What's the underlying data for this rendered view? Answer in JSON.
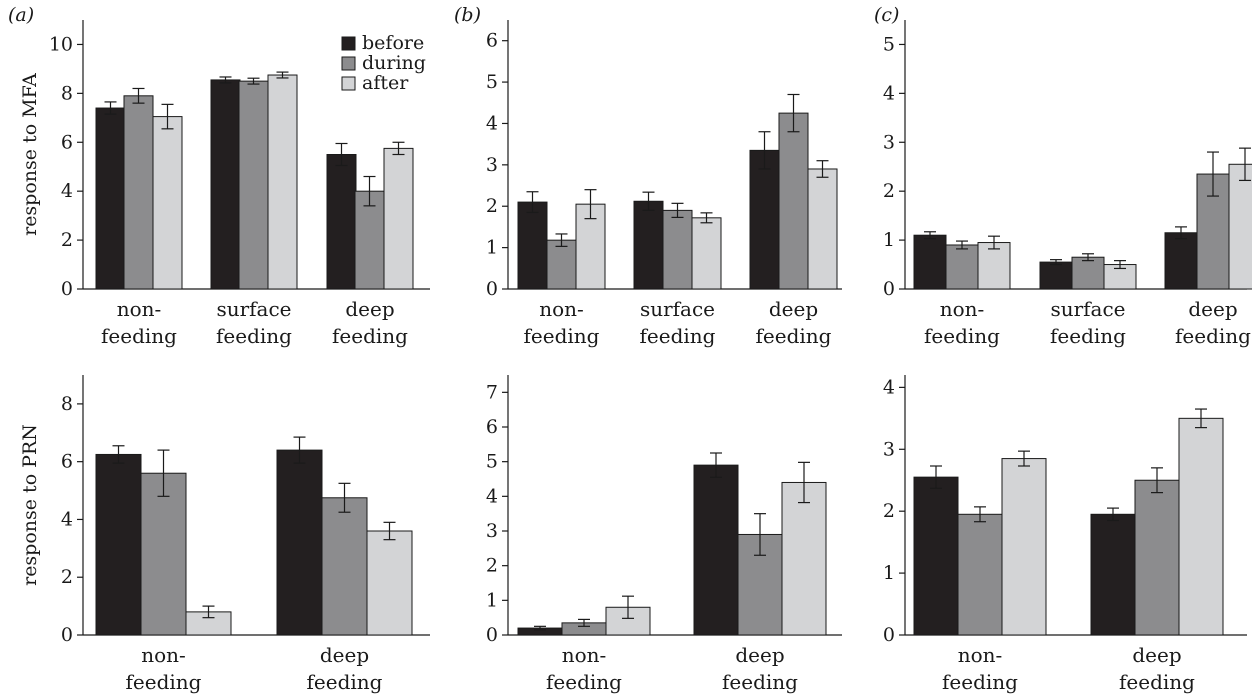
{
  "colors": {
    "before": "#231f20",
    "during": "#8c8c8e",
    "after": "#d3d4d6"
  },
  "legend": [
    "before",
    "during",
    "after"
  ],
  "chart_data": [
    {
      "type": "bar",
      "panel": "(a)",
      "ylabel": "response to MFA",
      "ylim": [
        0,
        11
      ],
      "yticks": [
        0,
        2,
        4,
        6,
        8,
        10
      ],
      "categories": [
        [
          "non-",
          "feeding"
        ],
        [
          "surface",
          "feeding"
        ],
        [
          "deep",
          "feeding"
        ]
      ],
      "series": [
        {
          "name": "before",
          "values": [
            7.4,
            8.55,
            5.5
          ],
          "errors": [
            0.25,
            0.12,
            0.45
          ]
        },
        {
          "name": "during",
          "values": [
            7.9,
            8.5,
            4.0
          ],
          "errors": [
            0.3,
            0.12,
            0.6
          ]
        },
        {
          "name": "after",
          "values": [
            7.05,
            8.75,
            5.75
          ],
          "errors": [
            0.5,
            0.12,
            0.25
          ]
        }
      ]
    },
    {
      "type": "bar",
      "panel": "(b)",
      "ylabel": "",
      "ylim": [
        0,
        6.5
      ],
      "yticks": [
        0,
        1,
        2,
        3,
        4,
        5,
        6
      ],
      "categories": [
        [
          "non-",
          "feeding"
        ],
        [
          "surface",
          "feeding"
        ],
        [
          "deep",
          "feeding"
        ]
      ],
      "series": [
        {
          "name": "before",
          "values": [
            2.1,
            2.12,
            3.35
          ],
          "errors": [
            0.25,
            0.22,
            0.45
          ]
        },
        {
          "name": "during",
          "values": [
            1.18,
            1.9,
            4.25
          ],
          "errors": [
            0.15,
            0.17,
            0.45
          ]
        },
        {
          "name": "after",
          "values": [
            2.05,
            1.72,
            2.9
          ],
          "errors": [
            0.35,
            0.12,
            0.2
          ]
        }
      ]
    },
    {
      "type": "bar",
      "panel": "(c)",
      "ylabel": "",
      "ylim": [
        0,
        5.5
      ],
      "yticks": [
        0,
        1,
        2,
        3,
        4,
        5
      ],
      "categories": [
        [
          "non-",
          "feeding"
        ],
        [
          "surface",
          "feeding"
        ],
        [
          "deep",
          "feeding"
        ]
      ],
      "series": [
        {
          "name": "before",
          "values": [
            1.1,
            0.55,
            1.15
          ],
          "errors": [
            0.07,
            0.05,
            0.12
          ]
        },
        {
          "name": "during",
          "values": [
            0.9,
            0.65,
            2.35
          ],
          "errors": [
            0.08,
            0.07,
            0.45
          ]
        },
        {
          "name": "after",
          "values": [
            0.95,
            0.5,
            2.55
          ],
          "errors": [
            0.13,
            0.08,
            0.33
          ]
        }
      ]
    },
    {
      "type": "bar",
      "panel": "",
      "ylabel": "response to PRN",
      "ylim": [
        0,
        9
      ],
      "yticks": [
        0,
        2,
        4,
        6,
        8
      ],
      "categories": [
        [
          "non-",
          "feeding"
        ],
        [
          "deep",
          "feeding"
        ]
      ],
      "series": [
        {
          "name": "before",
          "values": [
            6.25,
            6.4
          ],
          "errors": [
            0.3,
            0.45
          ]
        },
        {
          "name": "during",
          "values": [
            5.6,
            4.75
          ],
          "errors": [
            0.8,
            0.5
          ]
        },
        {
          "name": "after",
          "values": [
            0.8,
            3.6
          ],
          "errors": [
            0.2,
            0.3
          ]
        }
      ]
    },
    {
      "type": "bar",
      "panel": "",
      "ylabel": "",
      "ylim": [
        0,
        7.5
      ],
      "yticks": [
        0,
        1,
        2,
        3,
        4,
        5,
        6,
        7
      ],
      "categories": [
        [
          "non-",
          "feeding"
        ],
        [
          "deep",
          "feeding"
        ]
      ],
      "series": [
        {
          "name": "before",
          "values": [
            0.2,
            4.9
          ],
          "errors": [
            0.05,
            0.35
          ]
        },
        {
          "name": "during",
          "values": [
            0.35,
            2.9
          ],
          "errors": [
            0.1,
            0.6
          ]
        },
        {
          "name": "after",
          "values": [
            0.8,
            4.4
          ],
          "errors": [
            0.32,
            0.58
          ]
        }
      ]
    },
    {
      "type": "bar",
      "panel": "",
      "ylabel": "",
      "ylim": [
        0,
        4.2
      ],
      "yticks": [
        0,
        1,
        2,
        3,
        4
      ],
      "categories": [
        [
          "non-",
          "feeding"
        ],
        [
          "deep",
          "feeding"
        ]
      ],
      "series": [
        {
          "name": "before",
          "values": [
            2.55,
            1.95
          ],
          "errors": [
            0.18,
            0.1
          ]
        },
        {
          "name": "during",
          "values": [
            1.95,
            2.5
          ],
          "errors": [
            0.12,
            0.2
          ]
        },
        {
          "name": "after",
          "values": [
            2.85,
            3.5
          ],
          "errors": [
            0.12,
            0.15
          ]
        }
      ]
    }
  ]
}
